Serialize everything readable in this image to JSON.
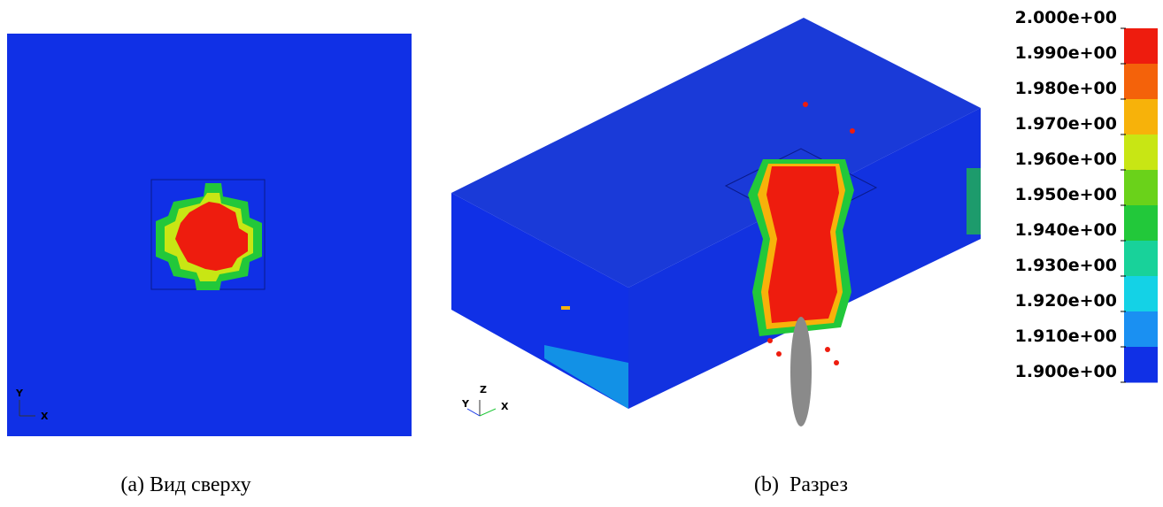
{
  "panels": [
    {
      "caption": "(a) Вид сверху",
      "triad": [
        "Y",
        "X"
      ]
    },
    {
      "caption": "(b)  Разрез",
      "triad": [
        "Y",
        "Z",
        "X"
      ]
    }
  ],
  "colorbar": {
    "labels": [
      "2.000e+00",
      "1.990e+00",
      "1.980e+00",
      "1.970e+00",
      "1.960e+00",
      "1.950e+00",
      "1.940e+00",
      "1.930e+00",
      "1.920e+00",
      "1.910e+00",
      "1.900e+00"
    ],
    "colors": [
      "#ee1c0e",
      "#f4620a",
      "#f7b20a",
      "#c8e614",
      "#6ad21a",
      "#22c83a",
      "#18d29a",
      "#14d2e6",
      "#1a90f2",
      "#1030e6"
    ]
  }
}
